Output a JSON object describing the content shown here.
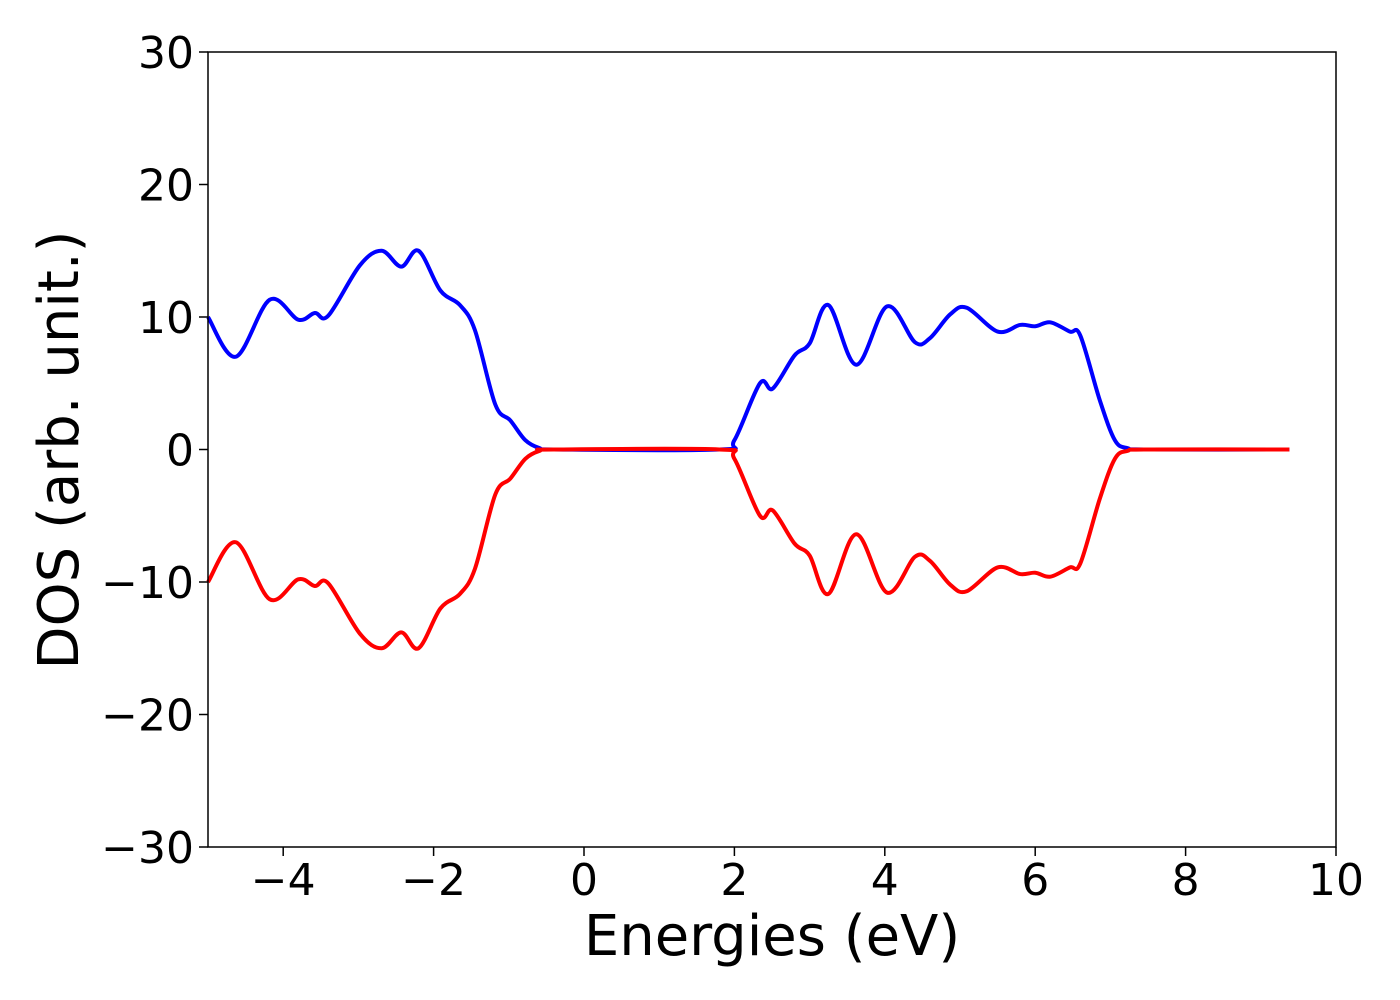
{
  "chart_data": {
    "type": "line",
    "x_label": "Energies (eV)",
    "y_label": "DOS (arb. unit.)",
    "x": [
      -5.0,
      -4.63,
      -4.18,
      -3.8,
      -3.58,
      -3.4,
      -2.98,
      -2.69,
      -2.43,
      -2.2,
      -1.91,
      -1.65,
      -1.45,
      -1.18,
      -0.98,
      -0.78,
      -0.59,
      -0.4,
      1.8,
      2.0,
      2.34,
      2.51,
      2.8,
      3.0,
      3.25,
      3.62,
      4.03,
      4.4,
      4.6,
      4.87,
      5.09,
      5.5,
      5.8,
      6.0,
      6.2,
      6.46,
      6.6,
      6.86,
      7.06,
      7.23,
      7.5,
      9.38
    ],
    "series": [
      {
        "color": "#0000ff",
        "values": [
          10.0,
          7.0,
          11.3,
          9.8,
          10.3,
          10.1,
          13.9,
          15.0,
          13.8,
          15.0,
          12.0,
          10.9,
          9.0,
          3.4,
          2.2,
          0.7,
          0.1,
          0,
          0,
          0.7,
          5.0,
          4.6,
          7.1,
          8.0,
          10.9,
          6.4,
          10.8,
          8.1,
          8.4,
          10.2,
          10.7,
          8.9,
          9.4,
          9.3,
          9.6,
          8.9,
          8.6,
          3.7,
          0.7,
          0.1,
          0,
          0
        ]
      },
      {
        "color": "#ff0000",
        "values": [
          -10.0,
          -7.0,
          -11.3,
          -9.8,
          -10.3,
          -10.1,
          -13.9,
          -15.0,
          -13.8,
          -15.0,
          -12.0,
          -10.9,
          -9.0,
          -3.4,
          -2.2,
          -0.7,
          -0.1,
          0,
          0,
          -0.7,
          -5.0,
          -4.6,
          -7.1,
          -8.0,
          -10.9,
          -6.4,
          -10.8,
          -8.1,
          -8.4,
          -10.2,
          -10.7,
          -8.9,
          -9.4,
          -9.3,
          -9.6,
          -8.9,
          -8.6,
          -3.7,
          -0.7,
          -0.1,
          0,
          0
        ]
      }
    ],
    "xlim": [
      -5,
      10
    ],
    "ylim": [
      -30,
      30
    ],
    "xticks": [
      {
        "value": -4,
        "label": "−4"
      },
      {
        "value": -2,
        "label": "−2"
      },
      0,
      2,
      4,
      6,
      8,
      10
    ],
    "yticks": [
      {
        "value": -30,
        "label": "−30"
      },
      {
        "value": -20,
        "label": "−20"
      },
      {
        "value": -10,
        "label": "−10"
      },
      0,
      10,
      20,
      30
    ]
  }
}
